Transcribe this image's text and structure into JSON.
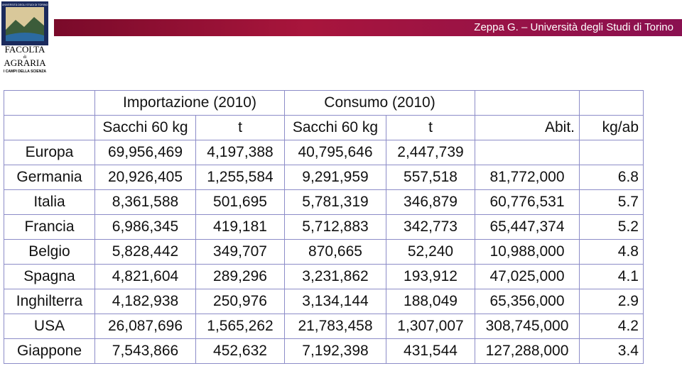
{
  "logo": {
    "arc": "UNIVERSITÀ DEGLI STUDI DI TORINO",
    "line1": "FACOLTA",
    "line2": "di",
    "line3": "AGRARIA",
    "motto": "I CAMPI DELLA SCIENZA"
  },
  "header": {
    "title": "Zeppa G. – Università degli Studi di Torino"
  },
  "table": {
    "groups": [
      "Importazione (2010)",
      "Consumo (2010)"
    ],
    "units": [
      "Sacchi 60 kg",
      "t",
      "Sacchi 60 kg",
      "t",
      "Abit.",
      "kg/ab"
    ],
    "rows": [
      [
        "Europa",
        "69,956,469",
        "4,197,388",
        "40,795,646",
        "2,447,739"
      ],
      [
        "Germania",
        "20,926,405",
        "1,255,584",
        "9,291,959",
        "557,518",
        "81,772,000",
        "6.8"
      ],
      [
        "Italia",
        "8,361,588",
        "501,695",
        "5,781,319",
        "346,879",
        "60,776,531",
        "5.7"
      ],
      [
        "Francia",
        "6,986,345",
        "419,181",
        "5,712,883",
        "342,773",
        "65,447,374",
        "5.2"
      ],
      [
        "Belgio",
        "5,828,442",
        "349,707",
        "870,665",
        "52,240",
        "10,988,000",
        "4.8"
      ],
      [
        "Spagna",
        "4,821,604",
        "289,296",
        "3,231,862",
        "193,912",
        "47,025,000",
        "4.1"
      ],
      [
        "Inghilterra",
        "4,182,938",
        "250,976",
        "3,134,144",
        "188,049",
        "65,356,000",
        "2.9"
      ],
      [
        "USA",
        "26,087,696",
        "1,565,262",
        "21,783,458",
        "1,307,007",
        "308,745,000",
        "4.2"
      ],
      [
        "Giappone",
        "7,543,866",
        "452,632",
        "7,192,398",
        "431,544",
        "127,288,000",
        "3.4"
      ]
    ]
  }
}
